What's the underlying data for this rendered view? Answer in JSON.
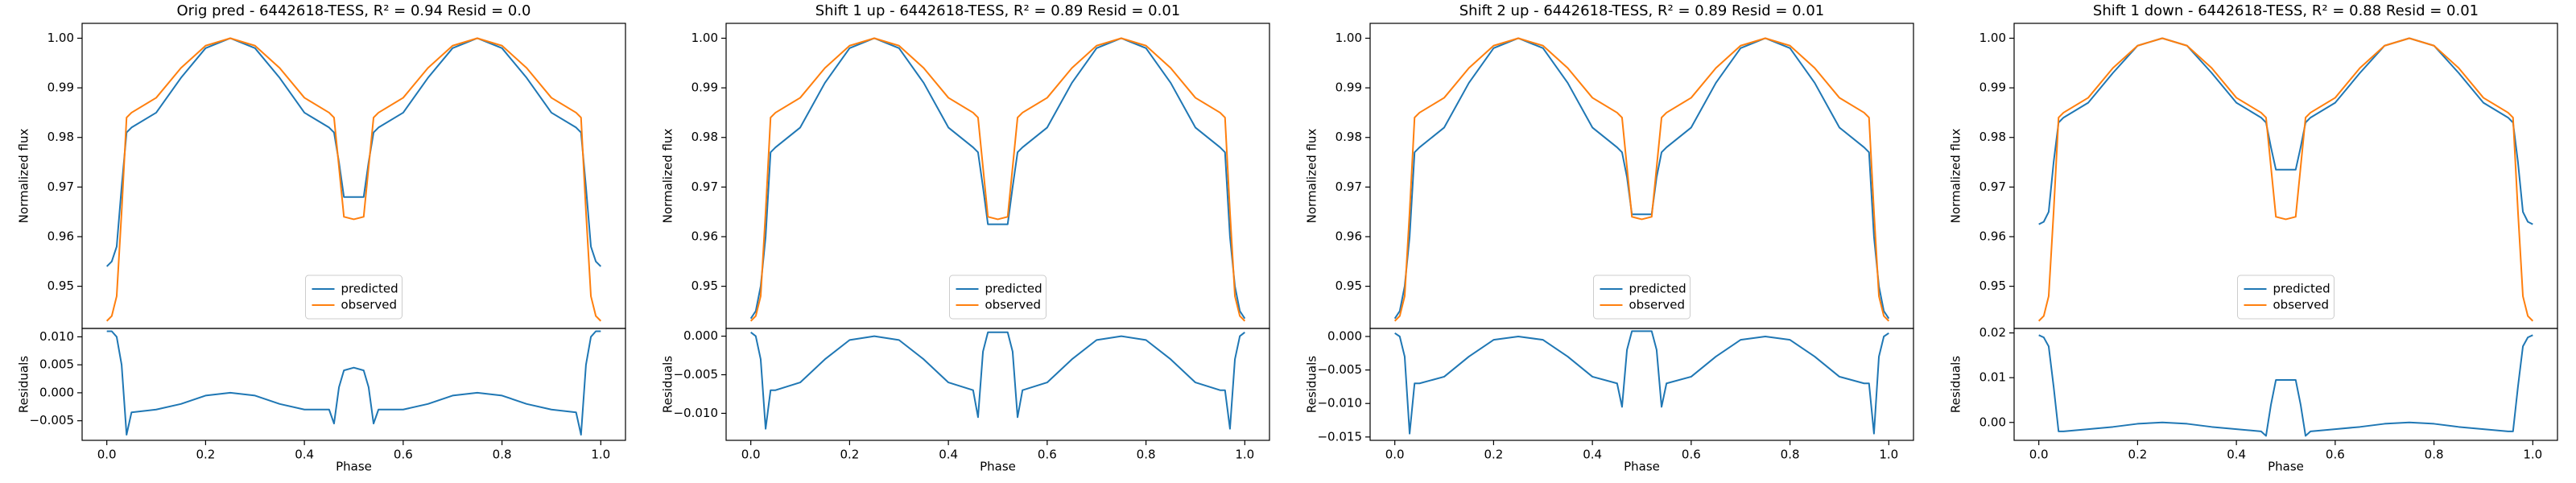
{
  "chart_data": [
    {
      "type": "line",
      "title": "Orig pred - 6442618-TESS, R² = 0.94 Resid = 0.0",
      "ylabel": "Normalized flux",
      "legend": "lower center",
      "x": [
        0,
        0.01,
        0.02,
        0.03,
        0.04,
        0.05,
        0.1,
        0.15,
        0.2,
        0.25,
        0.3,
        0.35,
        0.4,
        0.45,
        0.46,
        0.47,
        0.48,
        0.5,
        0.52,
        0.53,
        0.54,
        0.55,
        0.6,
        0.65,
        0.7,
        0.75,
        0.8,
        0.85,
        0.9,
        0.95,
        0.96,
        0.97,
        0.98,
        0.99,
        1.0
      ],
      "xlim": [
        -0.05,
        1.05
      ],
      "ylim": [
        0.9415,
        1.003
      ],
      "yticks": [
        0.95,
        0.96,
        0.97,
        0.98,
        0.99,
        {
          "value": 1.0,
          "label": "1.00"
        }
      ],
      "series": [
        {
          "name": "predicted",
          "color": "#1f77b4",
          "values": [
            0.954,
            0.955,
            0.958,
            0.97,
            0.981,
            0.982,
            0.985,
            0.992,
            0.998,
            1.0,
            0.998,
            0.992,
            0.985,
            0.982,
            0.981,
            0.975,
            0.968,
            0.968,
            0.968,
            0.975,
            0.981,
            0.982,
            0.985,
            0.992,
            0.998,
            1.0,
            0.998,
            0.992,
            0.985,
            0.982,
            0.981,
            0.97,
            0.958,
            0.955,
            0.954
          ]
        },
        {
          "name": "observed",
          "color": "#ff7f0e",
          "values": [
            0.943,
            0.944,
            0.948,
            0.965,
            0.984,
            0.985,
            0.988,
            0.994,
            0.9985,
            1.0,
            0.9985,
            0.994,
            0.988,
            0.985,
            0.984,
            0.974,
            0.964,
            0.9635,
            0.964,
            0.974,
            0.984,
            0.985,
            0.988,
            0.994,
            0.9985,
            1.0,
            0.9985,
            0.994,
            0.988,
            0.985,
            0.984,
            0.965,
            0.948,
            0.944,
            0.943
          ]
        }
      ]
    },
    {
      "type": "line",
      "xlabel": "Phase",
      "ylabel": "Residuals",
      "color": "#1f77b4",
      "x": [
        0,
        0.01,
        0.02,
        0.03,
        0.04,
        0.05,
        0.1,
        0.15,
        0.2,
        0.25,
        0.3,
        0.35,
        0.4,
        0.45,
        0.46,
        0.47,
        0.48,
        0.5,
        0.52,
        0.53,
        0.54,
        0.55,
        0.6,
        0.65,
        0.7,
        0.75,
        0.8,
        0.85,
        0.9,
        0.95,
        0.96,
        0.97,
        0.98,
        0.99,
        1.0
      ],
      "values": [
        0.011,
        0.011,
        0.01,
        0.005,
        -0.0075,
        -0.0035,
        -0.003,
        -0.002,
        -0.0005,
        0,
        -0.0005,
        -0.002,
        -0.003,
        -0.003,
        -0.0055,
        0.001,
        0.004,
        0.0045,
        0.004,
        0.001,
        -0.0055,
        -0.003,
        -0.003,
        -0.002,
        -0.0005,
        0,
        -0.0005,
        -0.002,
        -0.003,
        -0.0035,
        -0.0075,
        0.005,
        0.01,
        0.011,
        0.011
      ],
      "xlim": [
        -0.05,
        1.05
      ],
      "ylim": [
        -0.0085,
        0.0115
      ],
      "xticks": [
        {
          "value": 0,
          "label": "0.0"
        },
        0.2,
        0.4,
        0.6,
        0.8,
        {
          "value": 1.0,
          "label": "1.0"
        }
      ],
      "yticks": [
        {
          "value": -0.005,
          "label": "−0.005"
        },
        {
          "value": 0,
          "label": "0.000"
        },
        {
          "value": 0.005,
          "label": "0.005"
        },
        {
          "value": 0.01,
          "label": "0.010"
        }
      ]
    },
    {
      "type": "line",
      "title": "Shift 1 up - 6442618-TESS, R² = 0.89 Resid = 0.01",
      "ylabel": "Normalized flux",
      "legend": "lower center",
      "x": [
        0,
        0.01,
        0.02,
        0.03,
        0.04,
        0.05,
        0.1,
        0.15,
        0.2,
        0.25,
        0.3,
        0.35,
        0.4,
        0.45,
        0.46,
        0.47,
        0.48,
        0.5,
        0.52,
        0.53,
        0.54,
        0.55,
        0.6,
        0.65,
        0.7,
        0.75,
        0.8,
        0.85,
        0.9,
        0.95,
        0.96,
        0.97,
        0.98,
        0.99,
        1.0
      ],
      "xlim": [
        -0.05,
        1.05
      ],
      "ylim": [
        0.9415,
        1.003
      ],
      "yticks": [
        0.95,
        0.96,
        0.97,
        0.98,
        0.99,
        {
          "value": 1.0,
          "label": "1.00"
        }
      ],
      "series": [
        {
          "name": "predicted",
          "color": "#1f77b4",
          "values": [
            0.9435,
            0.945,
            0.95,
            0.96,
            0.977,
            0.978,
            0.982,
            0.991,
            0.998,
            1.0,
            0.998,
            0.991,
            0.982,
            0.978,
            0.977,
            0.97,
            0.9625,
            0.9625,
            0.9625,
            0.97,
            0.977,
            0.978,
            0.982,
            0.991,
            0.998,
            1.0,
            0.998,
            0.991,
            0.982,
            0.978,
            0.977,
            0.96,
            0.95,
            0.945,
            0.9435
          ]
        },
        {
          "name": "observed",
          "color": "#ff7f0e",
          "values": [
            0.943,
            0.944,
            0.948,
            0.965,
            0.984,
            0.985,
            0.988,
            0.994,
            0.9985,
            1.0,
            0.9985,
            0.994,
            0.988,
            0.985,
            0.984,
            0.974,
            0.964,
            0.9635,
            0.964,
            0.974,
            0.984,
            0.985,
            0.988,
            0.994,
            0.9985,
            1.0,
            0.9985,
            0.994,
            0.988,
            0.985,
            0.984,
            0.965,
            0.948,
            0.944,
            0.943
          ]
        }
      ]
    },
    {
      "type": "line",
      "xlabel": "Phase",
      "ylabel": "Residuals",
      "color": "#1f77b4",
      "x": [
        0,
        0.01,
        0.02,
        0.03,
        0.04,
        0.05,
        0.1,
        0.15,
        0.2,
        0.25,
        0.3,
        0.35,
        0.4,
        0.45,
        0.46,
        0.47,
        0.48,
        0.5,
        0.52,
        0.53,
        0.54,
        0.55,
        0.6,
        0.65,
        0.7,
        0.75,
        0.8,
        0.85,
        0.9,
        0.95,
        0.96,
        0.97,
        0.98,
        0.99,
        1.0
      ],
      "values": [
        0.0005,
        0,
        -0.003,
        -0.012,
        -0.007,
        -0.007,
        -0.006,
        -0.003,
        -0.0005,
        0,
        -0.0005,
        -0.003,
        -0.006,
        -0.007,
        -0.0105,
        -0.002,
        0.0005,
        0.0005,
        0.0005,
        -0.002,
        -0.0105,
        -0.007,
        -0.006,
        -0.003,
        -0.0005,
        0,
        -0.0005,
        -0.003,
        -0.006,
        -0.007,
        -0.007,
        -0.012,
        -0.003,
        0,
        0.0005
      ],
      "xlim": [
        -0.05,
        1.05
      ],
      "ylim": [
        -0.0135,
        0.001
      ],
      "xticks": [
        {
          "value": 0,
          "label": "0.0"
        },
        0.2,
        0.4,
        0.6,
        0.8,
        {
          "value": 1.0,
          "label": "1.0"
        }
      ],
      "yticks": [
        {
          "value": -0.01,
          "label": "−0.010"
        },
        {
          "value": -0.005,
          "label": "−0.005"
        },
        {
          "value": 0,
          "label": "0.000"
        }
      ]
    },
    {
      "type": "line",
      "title": "Shift 2 up - 6442618-TESS, R² = 0.89 Resid = 0.01",
      "ylabel": "Normalized flux",
      "legend": "lower center",
      "x": [
        0,
        0.01,
        0.02,
        0.03,
        0.04,
        0.05,
        0.1,
        0.15,
        0.2,
        0.25,
        0.3,
        0.35,
        0.4,
        0.45,
        0.46,
        0.47,
        0.48,
        0.5,
        0.52,
        0.53,
        0.54,
        0.55,
        0.6,
        0.65,
        0.7,
        0.75,
        0.8,
        0.85,
        0.9,
        0.95,
        0.96,
        0.97,
        0.98,
        0.99,
        1.0
      ],
      "xlim": [
        -0.05,
        1.05
      ],
      "ylim": [
        0.9415,
        1.003
      ],
      "yticks": [
        0.95,
        0.96,
        0.97,
        0.98,
        0.99,
        {
          "value": 1.0,
          "label": "1.00"
        }
      ],
      "series": [
        {
          "name": "predicted",
          "color": "#1f77b4",
          "values": [
            0.9435,
            0.945,
            0.95,
            0.96,
            0.977,
            0.978,
            0.982,
            0.991,
            0.998,
            1.0,
            0.998,
            0.991,
            0.982,
            0.978,
            0.977,
            0.972,
            0.9645,
            0.9645,
            0.9645,
            0.972,
            0.977,
            0.978,
            0.982,
            0.991,
            0.998,
            1.0,
            0.998,
            0.991,
            0.982,
            0.978,
            0.977,
            0.96,
            0.95,
            0.945,
            0.9435
          ]
        },
        {
          "name": "observed",
          "color": "#ff7f0e",
          "values": [
            0.943,
            0.944,
            0.948,
            0.965,
            0.984,
            0.985,
            0.988,
            0.994,
            0.9985,
            1.0,
            0.9985,
            0.994,
            0.988,
            0.985,
            0.984,
            0.974,
            0.964,
            0.9635,
            0.964,
            0.974,
            0.984,
            0.985,
            0.988,
            0.994,
            0.9985,
            1.0,
            0.9985,
            0.994,
            0.988,
            0.985,
            0.984,
            0.965,
            0.948,
            0.944,
            0.943
          ]
        }
      ]
    },
    {
      "type": "line",
      "xlabel": "Phase",
      "ylabel": "Residuals",
      "color": "#1f77b4",
      "x": [
        0,
        0.01,
        0.02,
        0.03,
        0.04,
        0.05,
        0.1,
        0.15,
        0.2,
        0.25,
        0.3,
        0.35,
        0.4,
        0.45,
        0.46,
        0.47,
        0.48,
        0.5,
        0.52,
        0.53,
        0.54,
        0.55,
        0.6,
        0.65,
        0.7,
        0.75,
        0.8,
        0.85,
        0.9,
        0.95,
        0.96,
        0.97,
        0.98,
        0.99,
        1.0
      ],
      "values": [
        0.0005,
        0,
        -0.003,
        -0.0145,
        -0.007,
        -0.007,
        -0.006,
        -0.003,
        -0.0005,
        0,
        -0.0005,
        -0.003,
        -0.006,
        -0.007,
        -0.0105,
        -0.002,
        0.0008,
        0.0008,
        0.0008,
        -0.002,
        -0.0105,
        -0.007,
        -0.006,
        -0.003,
        -0.0005,
        0,
        -0.0005,
        -0.003,
        -0.006,
        -0.007,
        -0.007,
        -0.0145,
        -0.003,
        0,
        0.0005
      ],
      "xlim": [
        -0.05,
        1.05
      ],
      "ylim": [
        -0.0155,
        0.0012
      ],
      "xticks": [
        {
          "value": 0,
          "label": "0.0"
        },
        0.2,
        0.4,
        0.6,
        0.8,
        {
          "value": 1.0,
          "label": "1.0"
        }
      ],
      "yticks": [
        {
          "value": -0.015,
          "label": "−0.015"
        },
        {
          "value": -0.01,
          "label": "−0.010"
        },
        {
          "value": -0.005,
          "label": "−0.005"
        },
        {
          "value": 0,
          "label": "0.000"
        }
      ]
    },
    {
      "type": "line",
      "title": "Shift 1 down - 6442618-TESS, R² = 0.88 Resid = 0.01",
      "ylabel": "Normalized flux",
      "legend": "lower center",
      "x": [
        0,
        0.01,
        0.02,
        0.03,
        0.04,
        0.05,
        0.1,
        0.15,
        0.2,
        0.25,
        0.3,
        0.35,
        0.4,
        0.45,
        0.46,
        0.47,
        0.48,
        0.5,
        0.52,
        0.53,
        0.54,
        0.55,
        0.6,
        0.65,
        0.7,
        0.75,
        0.8,
        0.85,
        0.9,
        0.95,
        0.96,
        0.97,
        0.98,
        0.99,
        1.0
      ],
      "xlim": [
        -0.05,
        1.05
      ],
      "ylim": [
        0.9415,
        1.003
      ],
      "yticks": [
        0.95,
        0.96,
        0.97,
        0.98,
        0.99,
        {
          "value": 1.0,
          "label": "1.00"
        }
      ],
      "series": [
        {
          "name": "predicted",
          "color": "#1f77b4",
          "values": [
            0.9625,
            0.963,
            0.965,
            0.975,
            0.983,
            0.984,
            0.987,
            0.993,
            0.9985,
            1.0,
            0.9985,
            0.993,
            0.987,
            0.984,
            0.983,
            0.978,
            0.9735,
            0.9735,
            0.9735,
            0.978,
            0.983,
            0.984,
            0.987,
            0.993,
            0.9985,
            1.0,
            0.9985,
            0.993,
            0.987,
            0.984,
            0.983,
            0.975,
            0.965,
            0.963,
            0.9625
          ]
        },
        {
          "name": "observed",
          "color": "#ff7f0e",
          "values": [
            0.943,
            0.944,
            0.948,
            0.965,
            0.984,
            0.985,
            0.988,
            0.994,
            0.9985,
            1.0,
            0.9985,
            0.994,
            0.988,
            0.985,
            0.984,
            0.974,
            0.964,
            0.9635,
            0.964,
            0.974,
            0.984,
            0.985,
            0.988,
            0.994,
            0.9985,
            1.0,
            0.9985,
            0.994,
            0.988,
            0.985,
            0.984,
            0.965,
            0.948,
            0.944,
            0.943
          ]
        }
      ]
    },
    {
      "type": "line",
      "xlabel": "Phase",
      "ylabel": "Residuals",
      "color": "#1f77b4",
      "x": [
        0,
        0.01,
        0.02,
        0.03,
        0.04,
        0.05,
        0.1,
        0.15,
        0.2,
        0.25,
        0.3,
        0.35,
        0.4,
        0.45,
        0.46,
        0.47,
        0.48,
        0.5,
        0.52,
        0.53,
        0.54,
        0.55,
        0.6,
        0.65,
        0.7,
        0.75,
        0.8,
        0.85,
        0.9,
        0.95,
        0.96,
        0.97,
        0.98,
        0.99,
        1.0
      ],
      "values": [
        0.0195,
        0.019,
        0.017,
        0.008,
        -0.002,
        -0.002,
        -0.0015,
        -0.001,
        -0.0003,
        0,
        -0.0003,
        -0.001,
        -0.0015,
        -0.002,
        -0.003,
        0.004,
        0.0095,
        0.0095,
        0.0095,
        0.004,
        -0.003,
        -0.002,
        -0.0015,
        -0.001,
        -0.0003,
        0,
        -0.0003,
        -0.001,
        -0.0015,
        -0.002,
        -0.002,
        0.008,
        0.017,
        0.019,
        0.0195
      ],
      "xlim": [
        -0.05,
        1.05
      ],
      "ylim": [
        -0.004,
        0.021
      ],
      "xticks": [
        {
          "value": 0,
          "label": "0.0"
        },
        0.2,
        0.4,
        0.6,
        0.8,
        {
          "value": 1.0,
          "label": "1.0"
        }
      ],
      "yticks": [
        {
          "value": 0,
          "label": "0.00"
        },
        0.01,
        0.02
      ]
    }
  ]
}
